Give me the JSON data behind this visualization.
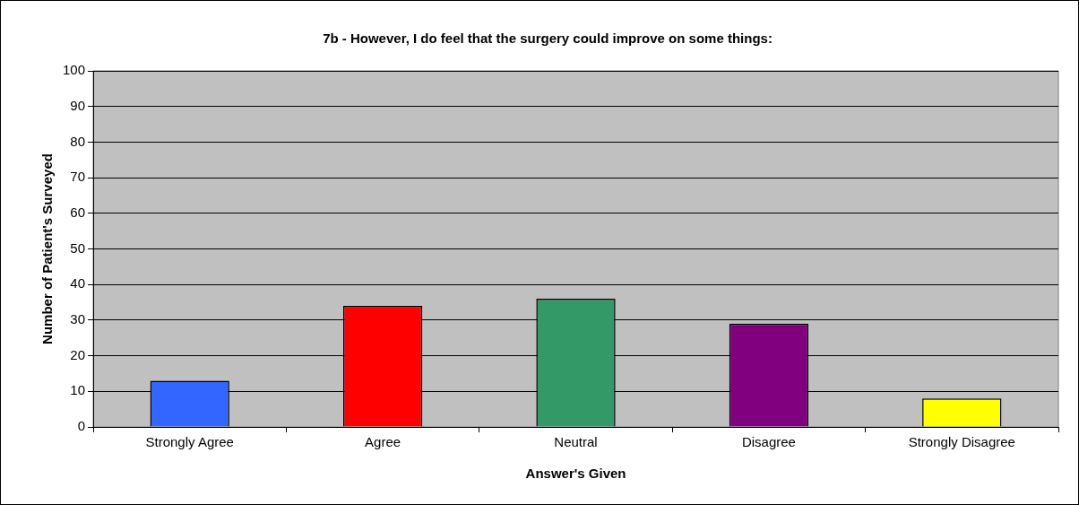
{
  "chart_data": {
    "type": "bar",
    "title": "7b - However, I do feel that the surgery could improve on some things:",
    "xlabel": "Answer's Given",
    "ylabel": "Number of Patient's Surveyed",
    "categories": [
      "Strongly Agree",
      "Agree",
      "Neutral",
      "Disagree",
      "Strongly Disagree"
    ],
    "values": [
      13,
      34,
      36,
      29,
      8
    ],
    "colors": [
      "#3366ff",
      "#ff0000",
      "#339966",
      "#800080",
      "#ffff00"
    ],
    "ylim": [
      0,
      100
    ],
    "yticks": [
      0,
      10,
      20,
      30,
      40,
      50,
      60,
      70,
      80,
      90,
      100
    ],
    "grid": "y",
    "legend": false
  }
}
